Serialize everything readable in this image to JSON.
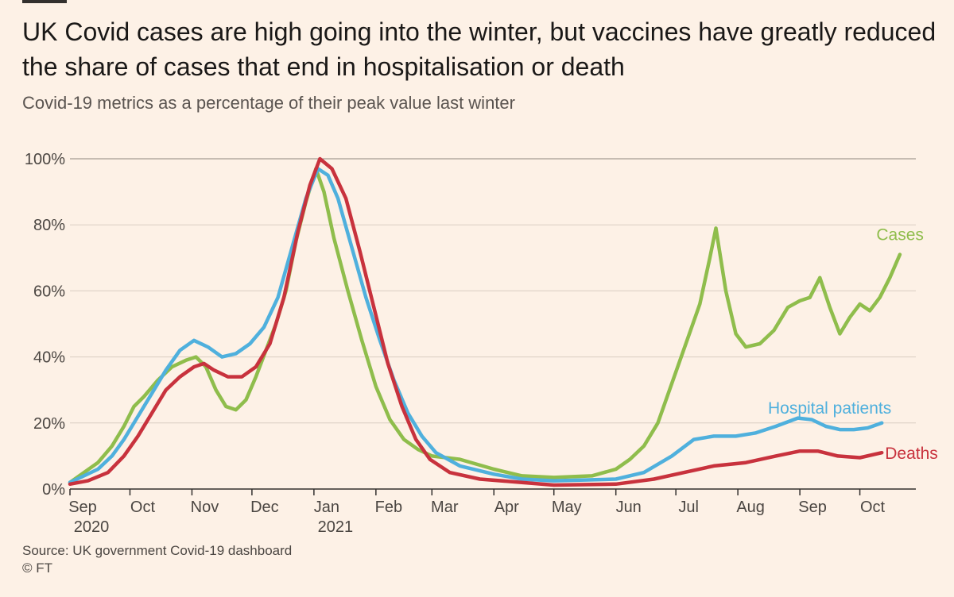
{
  "title": "UK Covid cases are high going into the winter, but vaccines have greatly reduced the share of cases that end in hospitalisation or death",
  "subtitle": "Covid-19 metrics as a percentage of their peak value last winter",
  "source": "Source: UK government Covid-19 dashboard",
  "credit": "© FT",
  "colors": {
    "cases": "#8fbd4c",
    "hospital": "#4fb0dd",
    "deaths": "#c8323d",
    "axis": "#33302e",
    "grid": "#d9cdc2",
    "text": "#4b4642"
  },
  "chart_data": {
    "type": "line",
    "title": "Covid-19 metrics as a percentage of their peak value last winter",
    "xlabel": "",
    "ylabel": "",
    "x_unit": "date",
    "xlim": [
      "2020-09-01",
      "2021-10-29"
    ],
    "ylim": [
      0,
      100
    ],
    "y_ticks": [
      {
        "value": 0,
        "label": "0%"
      },
      {
        "value": 20,
        "label": "20%"
      },
      {
        "value": 40,
        "label": "40%"
      },
      {
        "value": 60,
        "label": "60%"
      },
      {
        "value": 80,
        "label": "80%"
      },
      {
        "value": 100,
        "label": "100%"
      }
    ],
    "x_ticks": [
      {
        "date": "2020-09-01",
        "label": "Sep",
        "sublabel": "2020"
      },
      {
        "date": "2020-10-01",
        "label": "Oct",
        "sublabel": ""
      },
      {
        "date": "2020-11-01",
        "label": "Nov",
        "sublabel": ""
      },
      {
        "date": "2020-12-01",
        "label": "Dec",
        "sublabel": ""
      },
      {
        "date": "2021-01-01",
        "label": "Jan",
        "sublabel": "2021"
      },
      {
        "date": "2021-02-01",
        "label": "Feb",
        "sublabel": ""
      },
      {
        "date": "2021-03-01",
        "label": "Mar",
        "sublabel": ""
      },
      {
        "date": "2021-04-01",
        "label": "Apr",
        "sublabel": ""
      },
      {
        "date": "2021-05-01",
        "label": "May",
        "sublabel": ""
      },
      {
        "date": "2021-06-01",
        "label": "Jun",
        "sublabel": ""
      },
      {
        "date": "2021-07-01",
        "label": "Jul",
        "sublabel": ""
      },
      {
        "date": "2021-08-01",
        "label": "Aug",
        "sublabel": ""
      },
      {
        "date": "2021-09-01",
        "label": "Sep",
        "sublabel": ""
      },
      {
        "date": "2021-10-01",
        "label": "Oct",
        "sublabel": ""
      }
    ],
    "series": [
      {
        "name": "Cases",
        "key": "cases",
        "points": [
          [
            "2020-09-01",
            2
          ],
          [
            "2020-09-08",
            5
          ],
          [
            "2020-09-15",
            8
          ],
          [
            "2020-09-22",
            13
          ],
          [
            "2020-09-28",
            19
          ],
          [
            "2020-10-03",
            25
          ],
          [
            "2020-10-08",
            28
          ],
          [
            "2020-10-15",
            33
          ],
          [
            "2020-10-22",
            37
          ],
          [
            "2020-10-29",
            39
          ],
          [
            "2020-11-03",
            40
          ],
          [
            "2020-11-08",
            37
          ],
          [
            "2020-11-13",
            30
          ],
          [
            "2020-11-18",
            25
          ],
          [
            "2020-11-23",
            24
          ],
          [
            "2020-11-28",
            27
          ],
          [
            "2020-12-03",
            34
          ],
          [
            "2020-12-08",
            42
          ],
          [
            "2020-12-13",
            50
          ],
          [
            "2020-12-18",
            60
          ],
          [
            "2020-12-23",
            75
          ],
          [
            "2020-12-28",
            87
          ],
          [
            "2021-01-02",
            97
          ],
          [
            "2021-01-06",
            90
          ],
          [
            "2021-01-11",
            76
          ],
          [
            "2021-01-18",
            60
          ],
          [
            "2021-01-25",
            45
          ],
          [
            "2021-02-01",
            31
          ],
          [
            "2021-02-08",
            21
          ],
          [
            "2021-02-15",
            15
          ],
          [
            "2021-02-22",
            12
          ],
          [
            "2021-03-01",
            10
          ],
          [
            "2021-03-15",
            9
          ],
          [
            "2021-04-01",
            6
          ],
          [
            "2021-04-15",
            4
          ],
          [
            "2021-05-01",
            3.5
          ],
          [
            "2021-05-20",
            4
          ],
          [
            "2021-06-01",
            6
          ],
          [
            "2021-06-08",
            9
          ],
          [
            "2021-06-15",
            13
          ],
          [
            "2021-06-22",
            20
          ],
          [
            "2021-06-29",
            32
          ],
          [
            "2021-07-06",
            44
          ],
          [
            "2021-07-13",
            56
          ],
          [
            "2021-07-18",
            70
          ],
          [
            "2021-07-21",
            79
          ],
          [
            "2021-07-26",
            60
          ],
          [
            "2021-07-31",
            47
          ],
          [
            "2021-08-05",
            43
          ],
          [
            "2021-08-12",
            44
          ],
          [
            "2021-08-19",
            48
          ],
          [
            "2021-08-26",
            55
          ],
          [
            "2021-09-01",
            57
          ],
          [
            "2021-09-06",
            58
          ],
          [
            "2021-09-11",
            64
          ],
          [
            "2021-09-16",
            55
          ],
          [
            "2021-09-21",
            47
          ],
          [
            "2021-09-26",
            52
          ],
          [
            "2021-10-01",
            56
          ],
          [
            "2021-10-06",
            54
          ],
          [
            "2021-10-11",
            58
          ],
          [
            "2021-10-16",
            64
          ],
          [
            "2021-10-21",
            71
          ]
        ]
      },
      {
        "name": "Hospital patients",
        "key": "hospital",
        "points": [
          [
            "2020-09-01",
            2
          ],
          [
            "2020-09-08",
            4
          ],
          [
            "2020-09-15",
            6
          ],
          [
            "2020-09-22",
            10
          ],
          [
            "2020-09-28",
            15
          ],
          [
            "2020-10-05",
            22
          ],
          [
            "2020-10-12",
            29
          ],
          [
            "2020-10-19",
            36
          ],
          [
            "2020-10-26",
            42
          ],
          [
            "2020-11-02",
            45
          ],
          [
            "2020-11-09",
            43
          ],
          [
            "2020-11-16",
            40
          ],
          [
            "2020-11-23",
            41
          ],
          [
            "2020-11-30",
            44
          ],
          [
            "2020-12-07",
            49
          ],
          [
            "2020-12-14",
            58
          ],
          [
            "2020-12-21",
            73
          ],
          [
            "2020-12-28",
            88
          ],
          [
            "2021-01-03",
            97
          ],
          [
            "2021-01-08",
            95
          ],
          [
            "2021-01-13",
            88
          ],
          [
            "2021-01-20",
            73
          ],
          [
            "2021-01-27",
            58
          ],
          [
            "2021-02-03",
            45
          ],
          [
            "2021-02-10",
            33
          ],
          [
            "2021-02-17",
            23
          ],
          [
            "2021-02-24",
            16
          ],
          [
            "2021-03-03",
            11
          ],
          [
            "2021-03-15",
            7
          ],
          [
            "2021-04-01",
            4.5
          ],
          [
            "2021-04-15",
            3
          ],
          [
            "2021-05-01",
            2.5
          ],
          [
            "2021-06-01",
            3
          ],
          [
            "2021-06-15",
            5
          ],
          [
            "2021-06-29",
            10
          ],
          [
            "2021-07-10",
            15
          ],
          [
            "2021-07-20",
            16
          ],
          [
            "2021-07-31",
            16
          ],
          [
            "2021-08-10",
            17
          ],
          [
            "2021-08-20",
            19
          ],
          [
            "2021-08-31",
            21.5
          ],
          [
            "2021-09-07",
            21
          ],
          [
            "2021-09-14",
            19
          ],
          [
            "2021-09-21",
            18
          ],
          [
            "2021-09-28",
            18
          ],
          [
            "2021-10-05",
            18.5
          ],
          [
            "2021-10-12",
            20
          ]
        ]
      },
      {
        "name": "Deaths",
        "key": "deaths",
        "points": [
          [
            "2020-09-01",
            1.5
          ],
          [
            "2020-09-10",
            2.5
          ],
          [
            "2020-09-20",
            5
          ],
          [
            "2020-09-28",
            10
          ],
          [
            "2020-10-05",
            16
          ],
          [
            "2020-10-12",
            23
          ],
          [
            "2020-10-19",
            30
          ],
          [
            "2020-10-26",
            34
          ],
          [
            "2020-11-02",
            37
          ],
          [
            "2020-11-07",
            38
          ],
          [
            "2020-11-12",
            36
          ],
          [
            "2020-11-19",
            34
          ],
          [
            "2020-11-26",
            34
          ],
          [
            "2020-12-03",
            37
          ],
          [
            "2020-12-10",
            44
          ],
          [
            "2020-12-17",
            58
          ],
          [
            "2020-12-24",
            78
          ],
          [
            "2020-12-30",
            92
          ],
          [
            "2021-01-04",
            100
          ],
          [
            "2021-01-10",
            97
          ],
          [
            "2021-01-17",
            88
          ],
          [
            "2021-01-24",
            72
          ],
          [
            "2021-01-31",
            55
          ],
          [
            "2021-02-07",
            38
          ],
          [
            "2021-02-14",
            25
          ],
          [
            "2021-02-21",
            15
          ],
          [
            "2021-02-28",
            9
          ],
          [
            "2021-03-10",
            5
          ],
          [
            "2021-03-25",
            3
          ],
          [
            "2021-04-15",
            2
          ],
          [
            "2021-05-01",
            1.2
          ],
          [
            "2021-06-01",
            1.5
          ],
          [
            "2021-06-20",
            3
          ],
          [
            "2021-07-05",
            5
          ],
          [
            "2021-07-20",
            7
          ],
          [
            "2021-08-05",
            8
          ],
          [
            "2021-08-20",
            10
          ],
          [
            "2021-09-01",
            11.5
          ],
          [
            "2021-09-10",
            11.5
          ],
          [
            "2021-09-20",
            10
          ],
          [
            "2021-10-01",
            9.5
          ],
          [
            "2021-10-12",
            11
          ]
        ]
      }
    ],
    "annotations": [
      {
        "series": "cases",
        "text": "Cases"
      },
      {
        "series": "hospital",
        "text": "Hospital patients"
      },
      {
        "series": "deaths",
        "text": "Deaths"
      }
    ]
  }
}
